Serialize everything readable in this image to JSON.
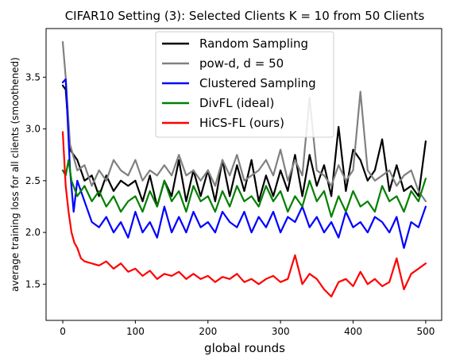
{
  "chart_data": {
    "type": "line",
    "title": "CIFAR10 Setting (3): Selected Clients K = 10 from 50 Clients",
    "xlabel": "global rounds",
    "ylabel": "average training loss for all clients (smoothened)",
    "xlim": [
      -23,
      522
    ],
    "ylim": [
      1.15,
      3.97
    ],
    "xticks": [
      0,
      100,
      200,
      300,
      400,
      500
    ],
    "yticks": [
      1.5,
      2.0,
      2.5,
      3.0,
      3.5
    ],
    "xtick_labels": [
      "0",
      "100",
      "200",
      "300",
      "400",
      "500"
    ],
    "ytick_labels": [
      "1.5",
      "2.0",
      "2.5",
      "3.0",
      "3.5"
    ],
    "grid": false,
    "legend_position": "top-center",
    "series": [
      {
        "name": "Random Sampling",
        "color": "#000000",
        "x": [
          0,
          4,
          10,
          20,
          30,
          40,
          50,
          60,
          70,
          80,
          90,
          100,
          110,
          120,
          130,
          140,
          150,
          160,
          170,
          180,
          190,
          200,
          210,
          220,
          230,
          240,
          250,
          260,
          270,
          280,
          290,
          300,
          310,
          320,
          330,
          340,
          350,
          360,
          370,
          380,
          390,
          400,
          410,
          420,
          430,
          440,
          450,
          460,
          470,
          480,
          490,
          500
        ],
        "values": [
          3.42,
          3.38,
          2.8,
          2.7,
          2.5,
          2.55,
          2.35,
          2.55,
          2.4,
          2.5,
          2.45,
          2.5,
          2.3,
          2.55,
          2.25,
          2.5,
          2.35,
          2.7,
          2.3,
          2.6,
          2.35,
          2.6,
          2.3,
          2.7,
          2.35,
          2.65,
          2.4,
          2.7,
          2.3,
          2.55,
          2.35,
          2.6,
          2.4,
          2.75,
          2.35,
          2.75,
          2.45,
          2.65,
          2.35,
          3.02,
          2.4,
          2.8,
          2.7,
          2.5,
          2.6,
          2.9,
          2.4,
          2.65,
          2.4,
          2.45,
          2.35,
          2.88
        ]
      },
      {
        "name": "pow-d, d = 50",
        "color": "#808080",
        "x": [
          0,
          4,
          10,
          20,
          30,
          40,
          50,
          60,
          70,
          80,
          90,
          100,
          110,
          120,
          130,
          140,
          150,
          160,
          170,
          180,
          190,
          200,
          210,
          220,
          230,
          240,
          250,
          260,
          270,
          280,
          290,
          300,
          310,
          320,
          330,
          340,
          350,
          360,
          370,
          380,
          390,
          400,
          410,
          420,
          430,
          440,
          450,
          460,
          470,
          480,
          490,
          500
        ],
        "values": [
          3.84,
          3.5,
          2.85,
          2.6,
          2.65,
          2.45,
          2.6,
          2.5,
          2.7,
          2.6,
          2.55,
          2.7,
          2.5,
          2.6,
          2.55,
          2.65,
          2.55,
          2.75,
          2.55,
          2.6,
          2.5,
          2.6,
          2.45,
          2.7,
          2.55,
          2.75,
          2.5,
          2.55,
          2.6,
          2.7,
          2.55,
          2.8,
          2.5,
          2.7,
          2.55,
          3.3,
          2.6,
          2.55,
          2.45,
          2.65,
          2.5,
          2.6,
          3.36,
          2.6,
          2.5,
          2.55,
          2.6,
          2.45,
          2.55,
          2.6,
          2.4,
          2.3
        ]
      },
      {
        "name": "Clustered Sampling",
        "color": "#0000ff",
        "x": [
          0,
          4,
          10,
          15,
          20,
          30,
          40,
          50,
          60,
          70,
          80,
          90,
          100,
          110,
          120,
          130,
          140,
          150,
          160,
          170,
          180,
          190,
          200,
          210,
          220,
          230,
          240,
          250,
          260,
          270,
          280,
          290,
          300,
          310,
          320,
          330,
          340,
          350,
          360,
          370,
          380,
          390,
          400,
          410,
          420,
          430,
          440,
          450,
          460,
          470,
          480,
          490,
          500
        ],
        "values": [
          3.45,
          3.48,
          2.6,
          2.2,
          2.5,
          2.3,
          2.1,
          2.05,
          2.15,
          2.0,
          2.1,
          1.95,
          2.2,
          2.0,
          2.1,
          1.95,
          2.25,
          2.0,
          2.15,
          2.0,
          2.2,
          2.05,
          2.1,
          2.0,
          2.2,
          2.1,
          2.05,
          2.2,
          2.0,
          2.15,
          2.05,
          2.2,
          2.0,
          2.15,
          2.1,
          2.25,
          2.05,
          2.15,
          2.0,
          2.1,
          1.95,
          2.2,
          2.05,
          2.1,
          2.0,
          2.15,
          2.1,
          2.0,
          2.15,
          1.85,
          2.1,
          2.05,
          2.25
        ]
      },
      {
        "name": "DivFL (ideal)",
        "color": "#008000",
        "x": [
          0,
          4,
          8,
          12,
          20,
          30,
          40,
          50,
          60,
          70,
          80,
          90,
          100,
          110,
          120,
          130,
          140,
          150,
          160,
          170,
          180,
          190,
          200,
          210,
          220,
          230,
          240,
          250,
          260,
          270,
          280,
          290,
          300,
          310,
          320,
          330,
          340,
          350,
          360,
          370,
          380,
          390,
          400,
          410,
          420,
          430,
          440,
          450,
          460,
          470,
          480,
          490,
          500
        ],
        "values": [
          2.6,
          2.55,
          2.7,
          2.5,
          2.35,
          2.45,
          2.3,
          2.4,
          2.25,
          2.35,
          2.2,
          2.3,
          2.35,
          2.2,
          2.4,
          2.25,
          2.5,
          2.3,
          2.4,
          2.2,
          2.45,
          2.3,
          2.35,
          2.2,
          2.4,
          2.25,
          2.45,
          2.3,
          2.35,
          2.25,
          2.45,
          2.3,
          2.4,
          2.2,
          2.35,
          2.25,
          2.5,
          2.3,
          2.4,
          2.15,
          2.35,
          2.2,
          2.4,
          2.25,
          2.3,
          2.2,
          2.45,
          2.3,
          2.35,
          2.2,
          2.4,
          2.3,
          2.52
        ]
      },
      {
        "name": "HiCS-FL (ours)",
        "color": "#ff0000",
        "x": [
          0,
          4,
          8,
          12,
          16,
          20,
          25,
          30,
          40,
          50,
          60,
          70,
          80,
          90,
          100,
          110,
          120,
          130,
          140,
          150,
          160,
          170,
          180,
          190,
          200,
          210,
          220,
          230,
          240,
          250,
          260,
          270,
          280,
          290,
          300,
          310,
          320,
          330,
          340,
          350,
          360,
          370,
          380,
          390,
          400,
          410,
          420,
          430,
          440,
          450,
          460,
          470,
          480,
          490,
          500
        ],
        "values": [
          2.97,
          2.45,
          2.2,
          2.0,
          1.9,
          1.85,
          1.75,
          1.72,
          1.7,
          1.68,
          1.72,
          1.65,
          1.7,
          1.62,
          1.65,
          1.58,
          1.63,
          1.55,
          1.6,
          1.58,
          1.62,
          1.55,
          1.6,
          1.55,
          1.58,
          1.52,
          1.57,
          1.55,
          1.6,
          1.52,
          1.55,
          1.5,
          1.55,
          1.58,
          1.52,
          1.55,
          1.78,
          1.5,
          1.6,
          1.55,
          1.45,
          1.38,
          1.52,
          1.55,
          1.48,
          1.62,
          1.5,
          1.55,
          1.48,
          1.52,
          1.75,
          1.45,
          1.6,
          1.65,
          1.7
        ]
      }
    ]
  }
}
